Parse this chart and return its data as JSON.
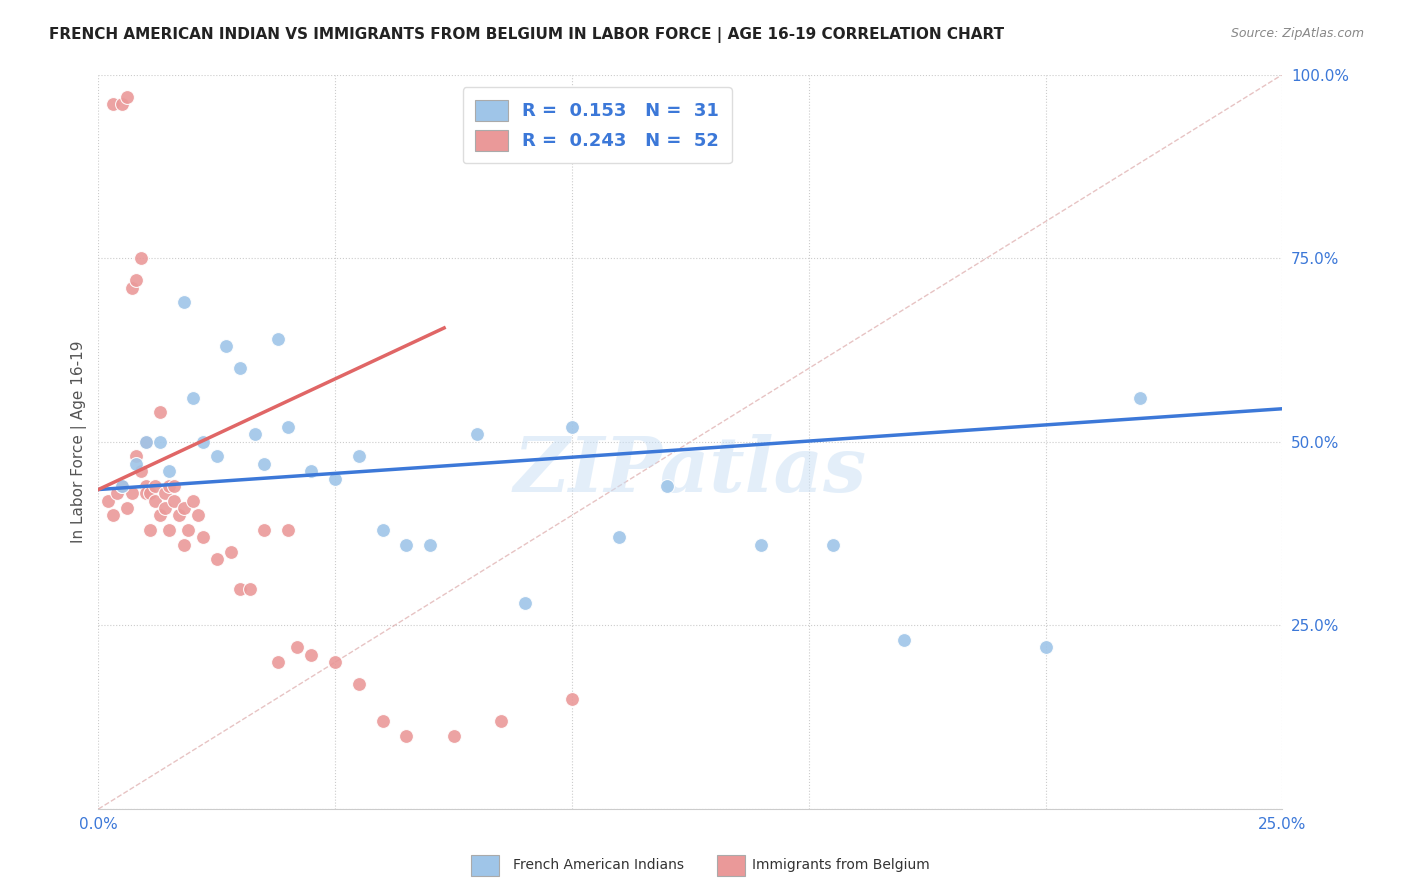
{
  "title": "FRENCH AMERICAN INDIAN VS IMMIGRANTS FROM BELGIUM IN LABOR FORCE | AGE 16-19 CORRELATION CHART",
  "source": "Source: ZipAtlas.com",
  "ylabel": "In Labor Force | Age 16-19",
  "xlim": [
    0.0,
    0.25
  ],
  "ylim": [
    0.0,
    1.0
  ],
  "xticks": [
    0.0,
    0.05,
    0.1,
    0.15,
    0.2,
    0.25
  ],
  "yticks": [
    0.0,
    0.25,
    0.5,
    0.75,
    1.0
  ],
  "xticklabels": [
    "0.0%",
    "",
    "",
    "",
    "",
    "25.0%"
  ],
  "yticklabels_right": [
    "",
    "25.0%",
    "50.0%",
    "75.0%",
    "100.0%"
  ],
  "watermark": "ZIPatlas",
  "legend_r1": "0.153",
  "legend_n1": "31",
  "legend_r2": "0.243",
  "legend_n2": "52",
  "blue_color": "#9fc5e8",
  "pink_color": "#ea9999",
  "blue_line_color": "#3c78d8",
  "pink_line_color": "#e06666",
  "diag_color": "#cccccc",
  "blue_scatter_x": [
    0.005,
    0.008,
    0.01,
    0.013,
    0.015,
    0.018,
    0.02,
    0.022,
    0.025,
    0.027,
    0.03,
    0.033,
    0.035,
    0.038,
    0.04,
    0.045,
    0.05,
    0.055,
    0.06,
    0.065,
    0.07,
    0.08,
    0.09,
    0.1,
    0.11,
    0.12,
    0.14,
    0.155,
    0.17,
    0.2,
    0.22
  ],
  "blue_scatter_y": [
    0.44,
    0.47,
    0.5,
    0.5,
    0.46,
    0.69,
    0.56,
    0.5,
    0.48,
    0.63,
    0.6,
    0.51,
    0.47,
    0.64,
    0.52,
    0.46,
    0.45,
    0.48,
    0.38,
    0.36,
    0.36,
    0.51,
    0.28,
    0.52,
    0.37,
    0.44,
    0.36,
    0.36,
    0.23,
    0.22,
    0.56
  ],
  "pink_scatter_x": [
    0.002,
    0.003,
    0.003,
    0.004,
    0.005,
    0.005,
    0.006,
    0.006,
    0.007,
    0.007,
    0.008,
    0.008,
    0.009,
    0.009,
    0.01,
    0.01,
    0.01,
    0.011,
    0.011,
    0.012,
    0.012,
    0.013,
    0.013,
    0.014,
    0.014,
    0.015,
    0.015,
    0.016,
    0.016,
    0.017,
    0.018,
    0.018,
    0.019,
    0.02,
    0.021,
    0.022,
    0.025,
    0.028,
    0.03,
    0.032,
    0.035,
    0.038,
    0.04,
    0.042,
    0.045,
    0.05,
    0.055,
    0.06,
    0.065,
    0.075,
    0.085,
    0.1
  ],
  "pink_scatter_y": [
    0.42,
    0.4,
    0.96,
    0.43,
    0.44,
    0.96,
    0.41,
    0.97,
    0.43,
    0.71,
    0.48,
    0.72,
    0.46,
    0.75,
    0.5,
    0.44,
    0.43,
    0.38,
    0.43,
    0.44,
    0.42,
    0.54,
    0.4,
    0.43,
    0.41,
    0.38,
    0.44,
    0.44,
    0.42,
    0.4,
    0.41,
    0.36,
    0.38,
    0.42,
    0.4,
    0.37,
    0.34,
    0.35,
    0.3,
    0.3,
    0.38,
    0.2,
    0.38,
    0.22,
    0.21,
    0.2,
    0.17,
    0.12,
    0.1,
    0.1,
    0.12,
    0.15
  ],
  "blue_trend_x": [
    0.0,
    0.25
  ],
  "blue_trend_y": [
    0.435,
    0.545
  ],
  "pink_trend_x": [
    0.0,
    0.073
  ],
  "pink_trend_y": [
    0.435,
    0.655
  ]
}
